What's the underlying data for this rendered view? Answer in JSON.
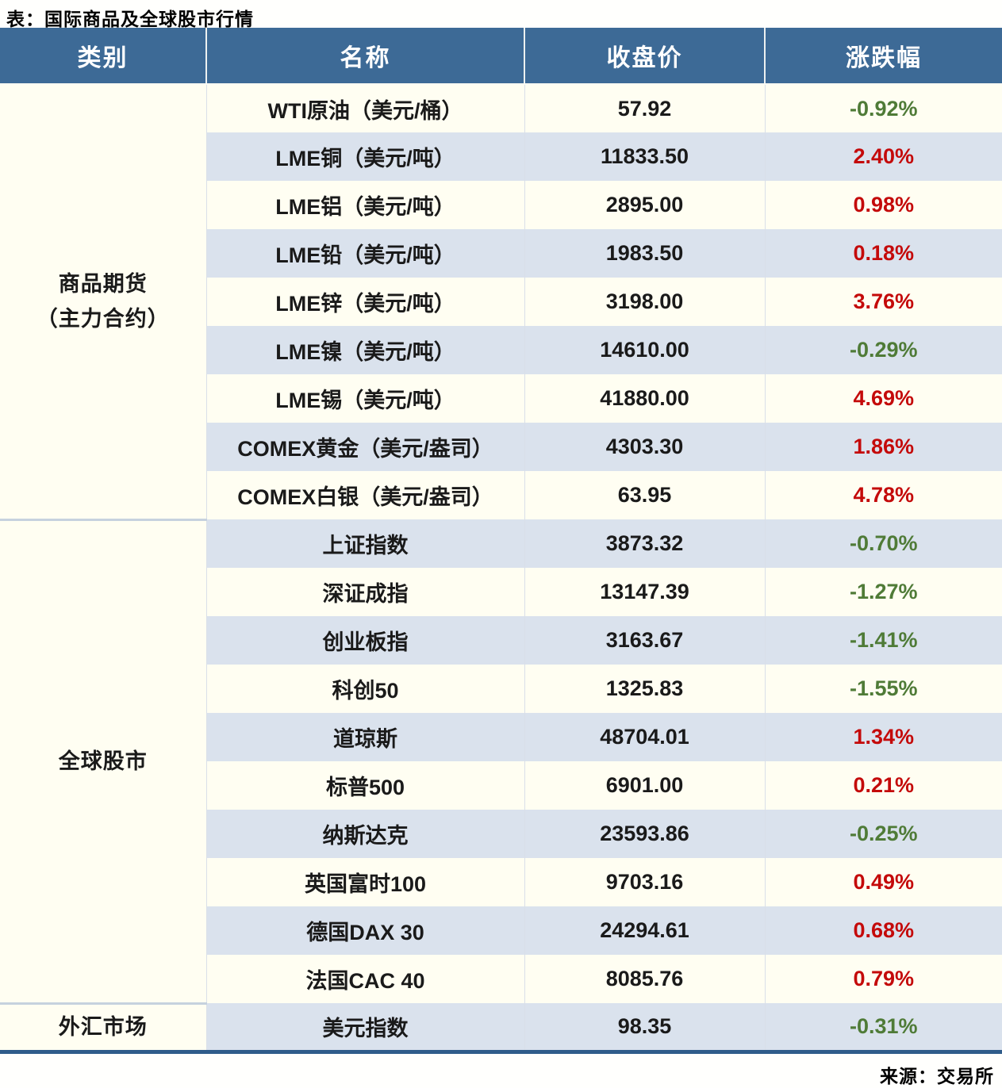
{
  "title": "表：国际商品及全球股市行情",
  "source": "来源：交易所",
  "colors": {
    "header_bg": "#3D6A96",
    "header_text": "#FFFFFF",
    "row_cream": "#FFFEF2",
    "row_alt_blue": "#DAE2ED",
    "up_red": "#C40A0A",
    "down_green": "#4F7B37",
    "bottom_rule": "#2F5C8A"
  },
  "chart_data": {
    "type": "table",
    "title": "表：国际商品及全球股市行情",
    "columns": [
      "类别",
      "名称",
      "收盘价",
      "涨跌幅"
    ],
    "sections": [
      {
        "category_lines": [
          "商品期货",
          "（主力合约）"
        ],
        "rows": [
          {
            "name": "WTI原油（美元/桶）",
            "close": "57.92",
            "change": "-0.92%"
          },
          {
            "name": "LME铜（美元/吨）",
            "close": "11833.50",
            "change": "2.40%"
          },
          {
            "name": "LME铝（美元/吨）",
            "close": "2895.00",
            "change": "0.98%"
          },
          {
            "name": "LME铅（美元/吨）",
            "close": "1983.50",
            "change": "0.18%"
          },
          {
            "name": "LME锌（美元/吨）",
            "close": "3198.00",
            "change": "3.76%"
          },
          {
            "name": "LME镍（美元/吨）",
            "close": "14610.00",
            "change": "-0.29%"
          },
          {
            "name": "LME锡（美元/吨）",
            "close": "41880.00",
            "change": "4.69%"
          },
          {
            "name": "COMEX黄金（美元/盎司）",
            "close": "4303.30",
            "change": "1.86%"
          },
          {
            "name": "COMEX白银（美元/盎司）",
            "close": "63.95",
            "change": "4.78%"
          }
        ]
      },
      {
        "category_lines": [
          "全球股市"
        ],
        "rows": [
          {
            "name": "上证指数",
            "close": "3873.32",
            "change": "-0.70%"
          },
          {
            "name": "深证成指",
            "close": "13147.39",
            "change": "-1.27%"
          },
          {
            "name": "创业板指",
            "close": "3163.67",
            "change": "-1.41%"
          },
          {
            "name": "科创50",
            "close": "1325.83",
            "change": "-1.55%"
          },
          {
            "name": "道琼斯",
            "close": "48704.01",
            "change": "1.34%"
          },
          {
            "name": "标普500",
            "close": "6901.00",
            "change": "0.21%"
          },
          {
            "name": "纳斯达克",
            "close": "23593.86",
            "change": "-0.25%"
          },
          {
            "name": "英国富时100",
            "close": "9703.16",
            "change": "0.49%"
          },
          {
            "name": "德国DAX 30",
            "close": "24294.61",
            "change": "0.68%"
          },
          {
            "name": "法国CAC 40",
            "close": "8085.76",
            "change": "0.79%"
          }
        ]
      },
      {
        "category_lines": [
          "外汇市场"
        ],
        "rows": [
          {
            "name": "美元指数",
            "close": "98.35",
            "change": "-0.31%"
          }
        ]
      }
    ]
  }
}
